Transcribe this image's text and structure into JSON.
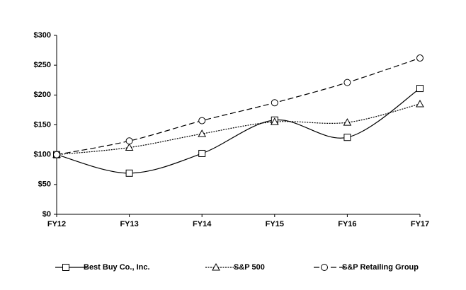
{
  "chart_data": {
    "type": "line",
    "categories": [
      "FY12",
      "FY13",
      "FY14",
      "FY15",
      "FY16",
      "FY17"
    ],
    "series": [
      {
        "name": "Best Buy Co., Inc.",
        "color": "#000000",
        "marker": "square",
        "dash": "solid",
        "values": [
          100,
          69,
          102,
          158,
          129,
          211
        ]
      },
      {
        "name": "S&P 500",
        "color": "#000000",
        "marker": "triangle",
        "dash": "dotted",
        "values": [
          100,
          112,
          135,
          155,
          154,
          185
        ]
      },
      {
        "name": "S&P Retailing Group",
        "color": "#000000",
        "marker": "circle",
        "dash": "dashed",
        "values": [
          100,
          123,
          157,
          187,
          221,
          262
        ]
      }
    ],
    "ylim": [
      0,
      300
    ],
    "yticks": [
      {
        "value": 0,
        "label": "$0"
      },
      {
        "value": 50,
        "label": "$50"
      },
      {
        "value": 100,
        "label": "$100"
      },
      {
        "value": 150,
        "label": "$150"
      },
      {
        "value": 200,
        "label": "$200"
      },
      {
        "value": 250,
        "label": "$250"
      },
      {
        "value": 300,
        "label": "$300"
      }
    ],
    "grid": false,
    "smooth": true,
    "legend": "bottom"
  }
}
